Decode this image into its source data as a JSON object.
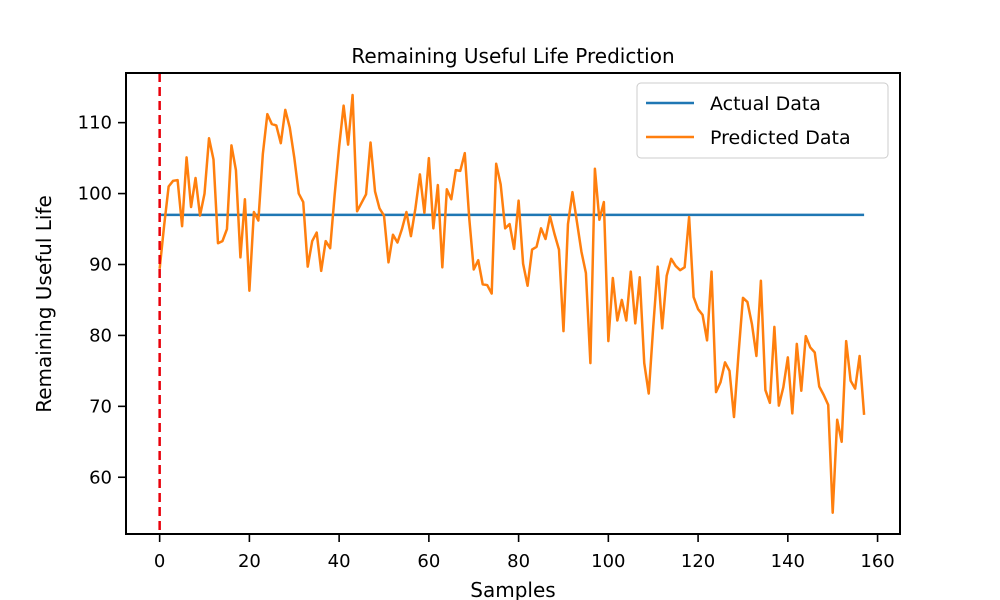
{
  "chart_data": {
    "type": "line",
    "title": "Remaining Useful Life Prediction",
    "xlabel": "Samples",
    "ylabel": "Remaining Useful Life",
    "xlim": [
      -7.5,
      165
    ],
    "ylim": [
      52,
      117
    ],
    "xticks": [
      0,
      20,
      40,
      60,
      80,
      100,
      120,
      140,
      160
    ],
    "yticks": [
      60,
      70,
      80,
      90,
      100,
      110
    ],
    "grid": false,
    "legend_position": "top-right",
    "vline": {
      "x": 0,
      "color": "#e8000b",
      "style": "dashed"
    },
    "series": [
      {
        "name": "Actual Data",
        "color": "#1f77b4",
        "x": [
          0,
          157
        ],
        "values": [
          97,
          97
        ]
      },
      {
        "name": "Predicted Data",
        "color": "#ff7f0e",
        "values": [
          89.4,
          95.5,
          101.0,
          101.8,
          101.9,
          95.4,
          105.1,
          98.1,
          102.2,
          96.9,
          100.0,
          107.8,
          104.8,
          93.0,
          93.3,
          95.0,
          106.8,
          103.3,
          91.0,
          99.2,
          86.3,
          97.4,
          96.2,
          105.6,
          111.2,
          109.8,
          109.6,
          107.1,
          111.8,
          109.3,
          105.1,
          100.0,
          98.8,
          89.7,
          93.3,
          94.5,
          89.1,
          93.3,
          92.3,
          99.8,
          106.6,
          112.4,
          106.9,
          113.9,
          97.5,
          98.7,
          99.9,
          107.2,
          100.3,
          97.9,
          96.9,
          90.3,
          94.2,
          93.1,
          95.0,
          97.4,
          94.0,
          97.9,
          102.7,
          97.3,
          105.0,
          95.1,
          101.2,
          89.6,
          100.6,
          99.2,
          103.3,
          103.2,
          105.7,
          96.5,
          89.3,
          90.6,
          87.2,
          87.1,
          85.9,
          104.2,
          101.3,
          95.1,
          95.7,
          92.2,
          99.0,
          90.1,
          87.0,
          92.1,
          92.5,
          95.1,
          93.6,
          96.8,
          94.3,
          92.1,
          80.6,
          95.7,
          100.2,
          96.0,
          91.8,
          88.8,
          76.1,
          103.5,
          96.3,
          98.8,
          79.2,
          88.1,
          82.1,
          85.0,
          82.1,
          89.0,
          81.7,
          88.2,
          76.1,
          71.8,
          81.2,
          89.7,
          81.0,
          88.4,
          90.8,
          89.8,
          89.2,
          89.6,
          96.7,
          85.4,
          83.7,
          82.9,
          79.3,
          89.0,
          72.0,
          73.4,
          76.2,
          75.0,
          68.5,
          77.3,
          85.3,
          84.7,
          81.6,
          77.1,
          87.7,
          72.3,
          70.5,
          81.2,
          70.1,
          72.7,
          76.9,
          69.0,
          78.8,
          72.2,
          79.9,
          78.3,
          77.6,
          72.8,
          71.6,
          70.2,
          55.0,
          68.1,
          65.0,
          79.2,
          73.6,
          72.5,
          77.1,
          68.8
        ]
      }
    ]
  }
}
